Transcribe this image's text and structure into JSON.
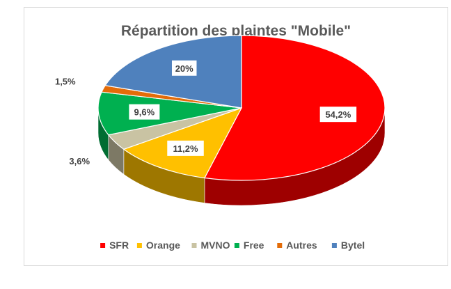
{
  "chart_data": {
    "type": "pie",
    "title": "Répartition des plaintes \"Mobile\"",
    "legend_position": "bottom",
    "three_d": true,
    "slices": [
      {
        "name": "SFR",
        "value": 54.2,
        "label": "54,2%",
        "color": "#ff0000"
      },
      {
        "name": "Orange",
        "value": 11.2,
        "label": "11,2%",
        "color": "#ffc000"
      },
      {
        "name": "MVNO",
        "value": 3.6,
        "label": "3,6%",
        "color": "#c9c3a3"
      },
      {
        "name": "Free",
        "value": 9.6,
        "label": "9,6%",
        "color": "#00b050"
      },
      {
        "name": "Autres",
        "value": 1.5,
        "label": "1,5%",
        "color": "#e36c09"
      },
      {
        "name": "Bytel",
        "value": 20,
        "label": "20%",
        "color": "#4f81bd"
      }
    ]
  }
}
